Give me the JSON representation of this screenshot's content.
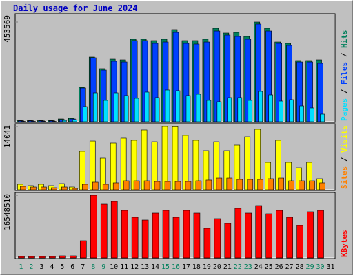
{
  "chart_data": [
    {
      "type": "bar",
      "title": "Daily usage for June 2024",
      "legend_separator": " / ",
      "ylim": [
        0,
        453569
      ],
      "yticks": [
        453569
      ],
      "series": [
        {
          "name": "Hits",
          "color": "#00805c",
          "values": [
            5000,
            5000,
            5000,
            5000,
            12500,
            15600,
            156400,
            294000,
            240900,
            284600,
            281500,
            375400,
            375400,
            369100,
            375400,
            419200,
            369100,
            369100,
            375400,
            425400,
            403500,
            406600,
            387900,
            453569,
            425400,
            362800,
            356600,
            278400,
            278400,
            281500,
            0
          ]
        },
        {
          "name": "Files",
          "color": "#0040ff",
          "values": [
            4000,
            4000,
            4000,
            4000,
            9400,
            12500,
            153300,
            290900,
            234600,
            275300,
            272100,
            369100,
            369100,
            356600,
            362800,
            406600,
            356600,
            353500,
            362800,
            412900,
            394100,
            387900,
            375400,
            444200,
            412900,
            356600,
            347200,
            272100,
            272100,
            265900,
            0
          ]
        },
        {
          "name": "Pages",
          "color": "#00e0ff",
          "values": [
            1500,
            1500,
            1500,
            1500,
            6000,
            9000,
            68800,
            131400,
            97000,
            131400,
            118900,
            106400,
            134500,
            109500,
            143900,
            140800,
            118900,
            125100,
            97000,
            90700,
            109500,
            109500,
            97000,
            137600,
            122000,
            93800,
            100100,
            71900,
            62600,
            34400,
            0
          ]
        }
      ]
    },
    {
      "type": "bar",
      "legend_separator": " / ",
      "ylim": [
        0,
        14041
      ],
      "yticks": [
        14041
      ],
      "series": [
        {
          "name": "Visits",
          "color": "#ffff00",
          "values": [
            1220,
            920,
            1220,
            920,
            1370,
            610,
            8550,
            10830,
            7020,
            10380,
            11450,
            10990,
            13280,
            10680,
            14041,
            14000,
            12060,
            10990,
            8700,
            10680,
            8700,
            9920,
            11750,
            13430,
            6100,
            10990,
            6100,
            4880,
            6100,
            2440,
            0
          ]
        },
        {
          "name": "Sites",
          "color": "#ff8000",
          "values": [
            760,
            610,
            610,
            460,
            610,
            310,
            1220,
            1680,
            1220,
            1530,
            1980,
            1980,
            1980,
            1830,
            1830,
            1830,
            1830,
            1980,
            2140,
            2590,
            2590,
            2290,
            2290,
            2290,
            2440,
            2590,
            1980,
            1980,
            1980,
            1530,
            0
          ]
        }
      ]
    },
    {
      "type": "bar",
      "ylim": [
        0,
        16548510
      ],
      "yticks": [
        16548510
      ],
      "categories": [
        "1",
        "2",
        "3",
        "4",
        "5",
        "6",
        "7",
        "8",
        "9",
        "10",
        "11",
        "12",
        "13",
        "14",
        "15",
        "16",
        "17",
        "18",
        "19",
        "20",
        "21",
        "22",
        "23",
        "24",
        "25",
        "26",
        "27",
        "28",
        "29",
        "30",
        "31"
      ],
      "category_colors": [
        "#00805c",
        "#00805c",
        "#000000",
        "#000000",
        "#000000",
        "#000000",
        "#000000",
        "#00805c",
        "#00805c",
        "#000000",
        "#000000",
        "#000000",
        "#000000",
        "#000000",
        "#00805c",
        "#00805c",
        "#000000",
        "#000000",
        "#000000",
        "#000000",
        "#000000",
        "#00805c",
        "#00805c",
        "#000000",
        "#000000",
        "#000000",
        "#000000",
        "#000000",
        "#00805c",
        "#00805c",
        "#000000"
      ],
      "series": [
        {
          "name": "KBytes",
          "color": "#ff0000",
          "values": [
            364000,
            364000,
            364000,
            364000,
            545600,
            545600,
            4546000,
            16548510,
            14184000,
            14912000,
            12548000,
            10729000,
            10002000,
            11820000,
            12548000,
            10729000,
            12548000,
            11820000,
            7820000,
            10366000,
            9093000,
            13093000,
            11820000,
            13821000,
            11639000,
            12548000,
            10729000,
            8547000,
            12184000,
            12548000,
            0
          ]
        }
      ]
    }
  ]
}
